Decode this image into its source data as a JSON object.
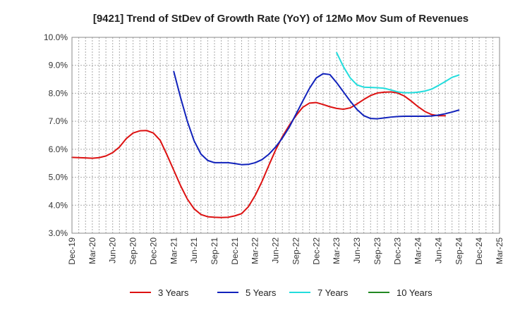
{
  "chart_data": {
    "type": "line",
    "title": "[9421]  Trend of StDev of Growth Rate (YoY) of 12Mo Mov Sum of Revenues",
    "xlabel": "",
    "ylabel": "",
    "ylim": [
      3.0,
      10.0
    ],
    "y_ticks": [
      3.0,
      4.0,
      5.0,
      6.0,
      7.0,
      8.0,
      9.0,
      10.0
    ],
    "y_tick_labels": [
      "3.0%",
      "4.0%",
      "5.0%",
      "6.0%",
      "7.0%",
      "8.0%",
      "9.0%",
      "10.0%"
    ],
    "x_tick_labels": [
      "Dec-19",
      "Mar-20",
      "Jun-20",
      "Sep-20",
      "Dec-20",
      "Mar-21",
      "Jun-21",
      "Sep-21",
      "Dec-21",
      "Mar-22",
      "Jun-22",
      "Sep-22",
      "Dec-22",
      "Mar-23",
      "Jun-23",
      "Sep-23",
      "Dec-23",
      "Mar-24",
      "Jun-24",
      "Sep-24",
      "Dec-24",
      "Mar-25"
    ],
    "x_start": "Dec-19",
    "grid": true,
    "legend_position": "bottom",
    "series": [
      {
        "name": "3 Years",
        "color": "#dd1111",
        "start_index": 0,
        "values": [
          5.71,
          5.7,
          5.69,
          5.68,
          5.7,
          5.76,
          5.88,
          6.08,
          6.38,
          6.58,
          6.66,
          6.67,
          6.58,
          6.32,
          5.8,
          5.25,
          4.7,
          4.22,
          3.87,
          3.67,
          3.59,
          3.57,
          3.56,
          3.57,
          3.62,
          3.7,
          3.95,
          4.35,
          4.85,
          5.42,
          5.97,
          6.45,
          6.85,
          7.2,
          7.5,
          7.65,
          7.67,
          7.6,
          7.52,
          7.46,
          7.43,
          7.48,
          7.62,
          7.78,
          7.92,
          8.01,
          8.04,
          8.05,
          8.01,
          7.9,
          7.72,
          7.52,
          7.35,
          7.24,
          7.2,
          7.2
        ]
      },
      {
        "name": "5 Years",
        "color": "#1122bb",
        "start_index": 15,
        "values": [
          8.78,
          7.85,
          7.0,
          6.3,
          5.83,
          5.6,
          5.52,
          5.52,
          5.52,
          5.49,
          5.45,
          5.46,
          5.52,
          5.63,
          5.82,
          6.08,
          6.4,
          6.78,
          7.25,
          7.72,
          8.18,
          8.55,
          8.7,
          8.67,
          8.38,
          8.05,
          7.72,
          7.42,
          7.2,
          7.1,
          7.09,
          7.12,
          7.15,
          7.17,
          7.18,
          7.18,
          7.18,
          7.18,
          7.19,
          7.22,
          7.27,
          7.33,
          7.4
        ]
      },
      {
        "name": "7 Years",
        "color": "#22dddd",
        "start_index": 39,
        "values": [
          9.45,
          8.95,
          8.55,
          8.3,
          8.22,
          8.21,
          8.2,
          8.18,
          8.12,
          8.05,
          8.02,
          8.02,
          8.04,
          8.08,
          8.15,
          8.28,
          8.42,
          8.57,
          8.65
        ]
      },
      {
        "name": "10 Years",
        "color": "#228822",
        "start_index": 0,
        "values": []
      }
    ]
  }
}
